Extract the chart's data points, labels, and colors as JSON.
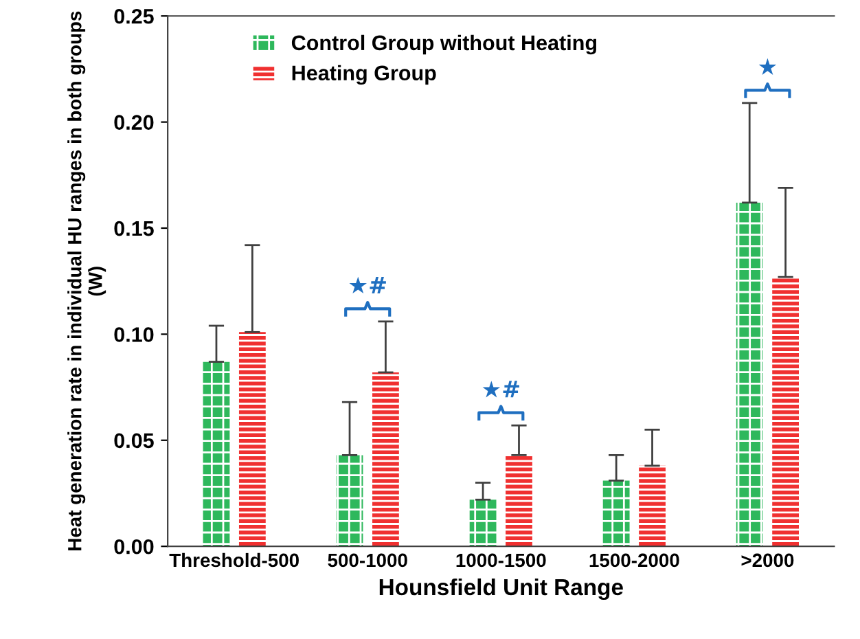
{
  "chart_data": {
    "type": "bar",
    "xlabel": "Hounsfield Unit Range",
    "ylabel": "Heat generation rate in individual HU ranges in both groups (W)",
    "categories": [
      "Threshold-500",
      "500-1000",
      "1000-1500",
      "1500-2000",
      ">2000"
    ],
    "series": [
      {
        "name": "Control Group without Heating",
        "color": "#2eb85c",
        "values": [
          0.087,
          0.043,
          0.022,
          0.031,
          0.162
        ],
        "errors": [
          [
            0.087,
            0.104
          ],
          [
            0.043,
            0.068
          ],
          [
            0.022,
            0.03
          ],
          [
            0.031,
            0.043
          ],
          [
            0.162,
            0.209
          ]
        ]
      },
      {
        "name": "Heating Group",
        "color": "#f03030",
        "values": [
          0.101,
          0.082,
          0.043,
          0.038,
          0.127
        ],
        "errors": [
          [
            0.101,
            0.142
          ],
          [
            0.082,
            0.106
          ],
          [
            0.043,
            0.057
          ],
          [
            0.038,
            0.055
          ],
          [
            0.127,
            0.169
          ]
        ]
      }
    ],
    "ylim": [
      0,
      0.25
    ],
    "yticks": [
      {
        "value": 0,
        "label": "0.00"
      },
      {
        "value": 0.05,
        "label": "0.05"
      },
      {
        "value": 0.1,
        "label": "0.10"
      },
      {
        "value": 0.15,
        "label": "0.15"
      },
      {
        "value": 0.2,
        "label": "0.20"
      },
      {
        "value": 0.25,
        "label": "0.25"
      }
    ],
    "annotations": [
      "★#",
      "★#",
      "★"
    ],
    "legend": "top left",
    "grid": false
  }
}
